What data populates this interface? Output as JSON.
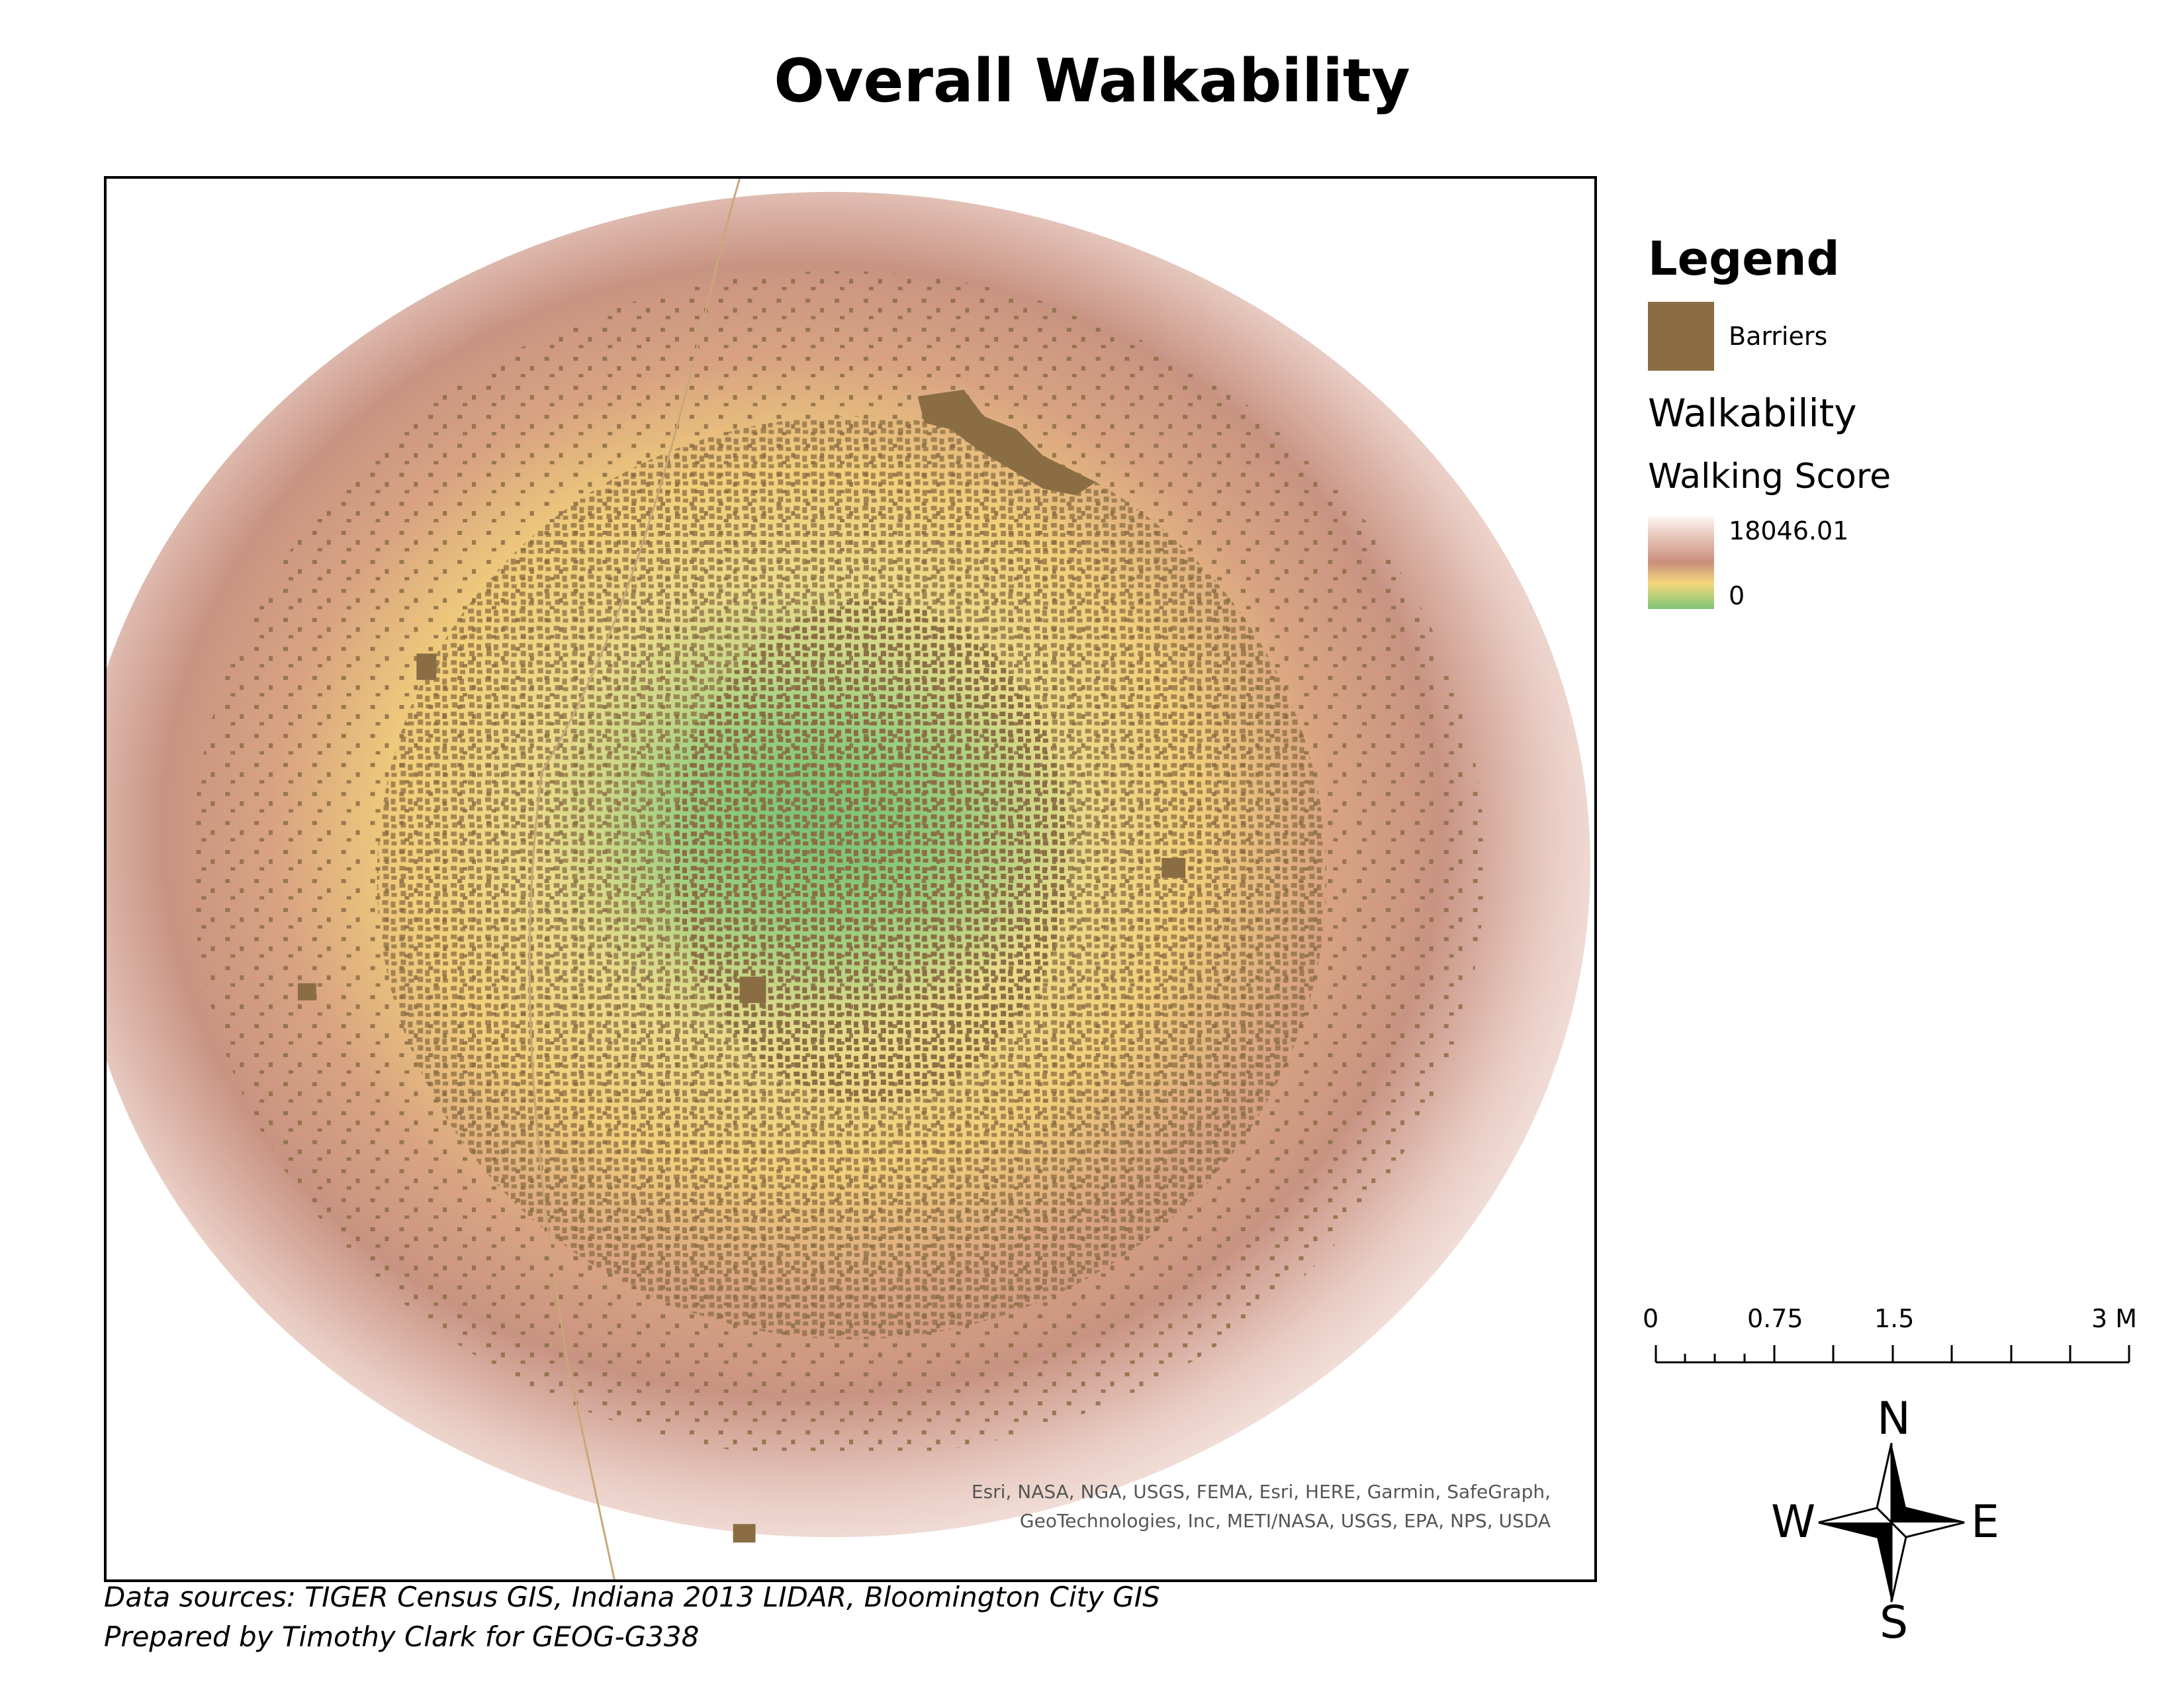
{
  "title": "Overall Walkability",
  "legend": {
    "heading": "Legend",
    "barrier_label": "Barriers",
    "layer_name": "Walkability",
    "field_name": "Walking Score",
    "ramp_max": "18046.01",
    "ramp_min": "0"
  },
  "colors": {
    "barrier": "#8b6d44",
    "low_score": "#7fc576",
    "mid_score": "#f5d77d",
    "high_score": "#c98f7c",
    "max_score": "#fdf6f3"
  },
  "scale_bar": {
    "labels": [
      "0",
      "0.75",
      "1.5",
      "3 M"
    ]
  },
  "compass": {
    "north": "N",
    "south": "S",
    "east": "E",
    "west": "W"
  },
  "attribution": {
    "line1": "Esri, NASA, NGA, USGS, FEMA, Esri, HERE, Garmin, SafeGraph,",
    "line2": "GeoTechnologies, Inc, METI/NASA, USGS, EPA, NPS, USDA"
  },
  "footer": {
    "sources": "Data sources: TIGER Census GIS, Indiana 2013 LIDAR, Bloomington City GIS",
    "credit": "Prepared by Timothy Clark for GEOG-G338"
  }
}
